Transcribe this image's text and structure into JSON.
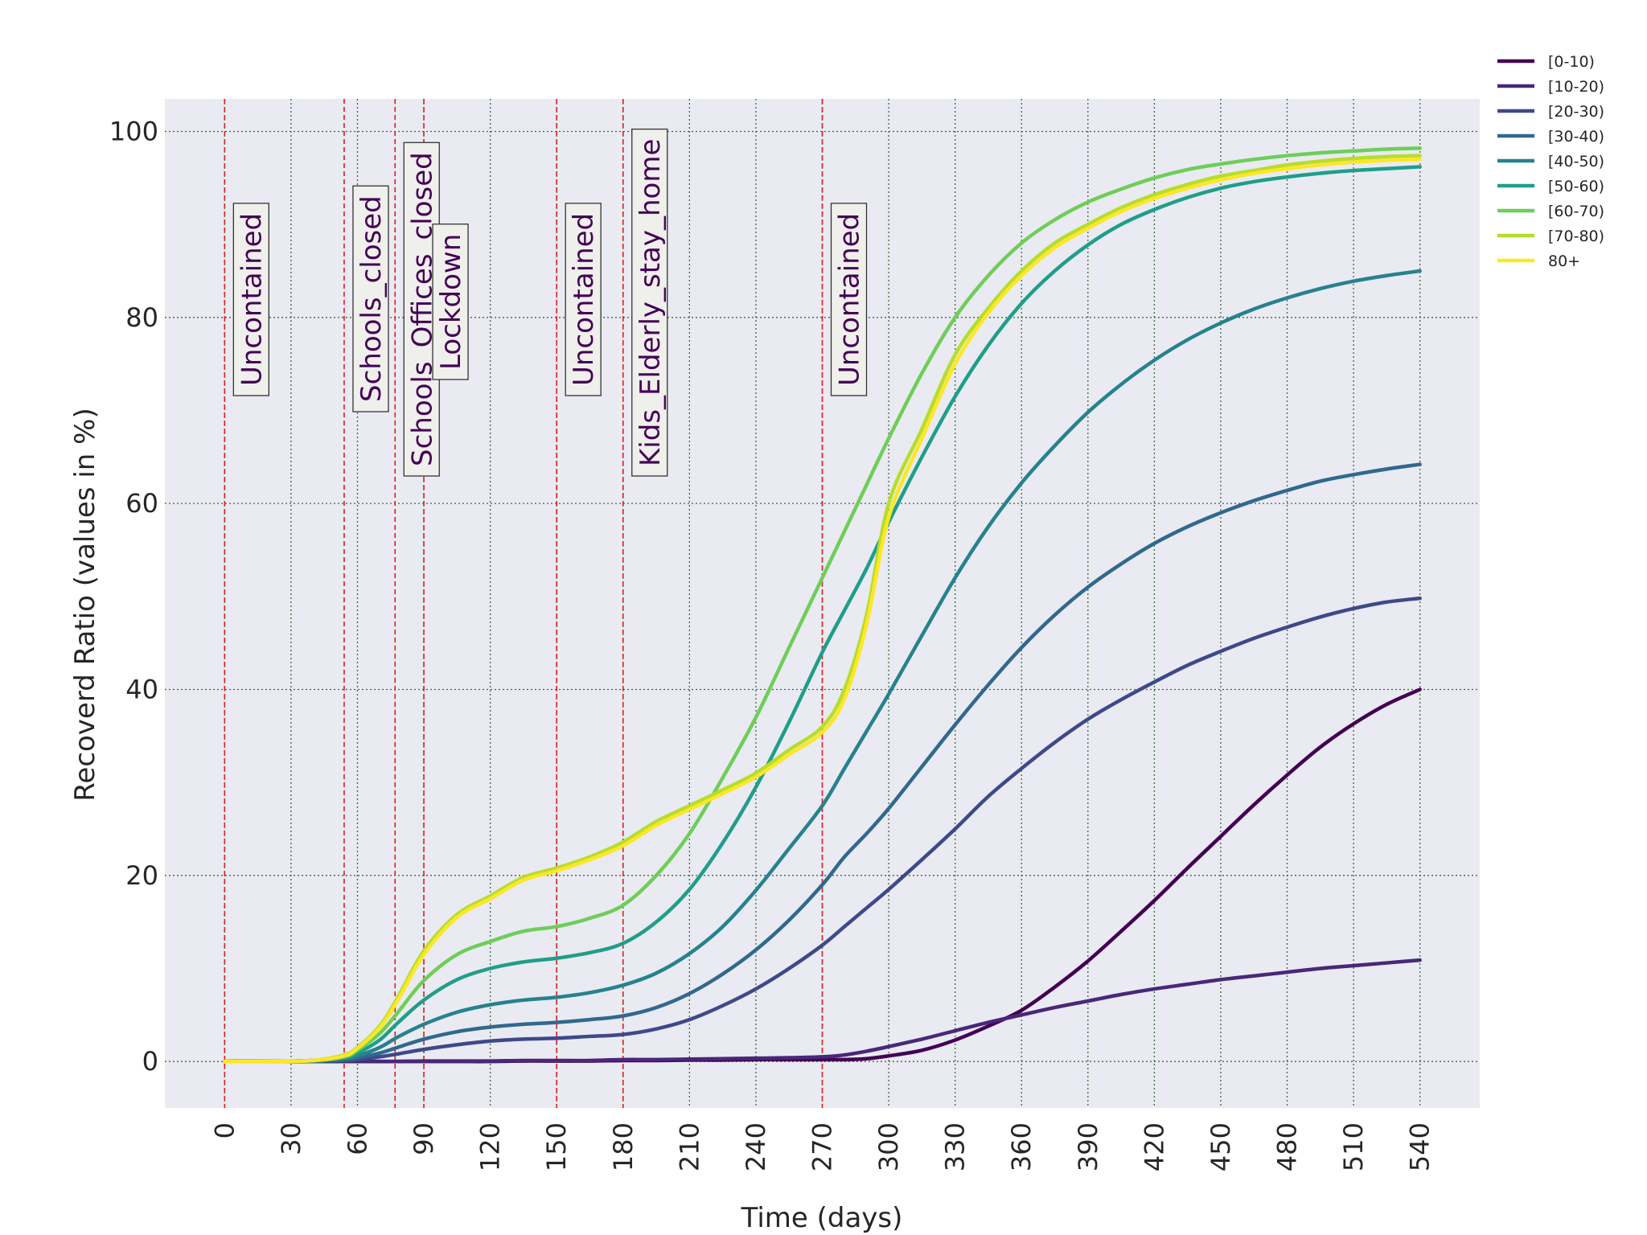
{
  "chart_data": {
    "type": "line",
    "title": "",
    "xlabel": "Time (days)",
    "ylabel": "Recoverd Ratio (values in %)",
    "xlim": [
      -27,
      567
    ],
    "ylim": [
      -5,
      103.5
    ],
    "xticks": [
      0,
      30,
      60,
      90,
      120,
      150,
      180,
      210,
      240,
      270,
      300,
      330,
      360,
      390,
      420,
      450,
      480,
      510,
      540
    ],
    "yticks": [
      0,
      20,
      40,
      60,
      80,
      100
    ],
    "grid": true,
    "legend_position": "top-right (outside plot)",
    "x": [
      0,
      20,
      40,
      54,
      60,
      70,
      78,
      90,
      105,
      120,
      135,
      150,
      165,
      180,
      195,
      210,
      225,
      240,
      255,
      270,
      280,
      290,
      300,
      315,
      330,
      345,
      360,
      375,
      390,
      405,
      420,
      435,
      450,
      465,
      480,
      495,
      510,
      525,
      540
    ],
    "series": [
      {
        "name": "[0-10)",
        "color": "#440154",
        "values": [
          0,
          0,
          0,
          0,
          0,
          0,
          0,
          0,
          0,
          0,
          0.05,
          0.05,
          0.05,
          0.1,
          0.1,
          0.15,
          0.15,
          0.2,
          0.2,
          0.2,
          0.2,
          0.3,
          0.6,
          1.2,
          2.3,
          3.8,
          5.5,
          8.0,
          10.8,
          14.0,
          17.3,
          20.8,
          24.2,
          27.6,
          30.8,
          33.8,
          36.3,
          38.4,
          40.0
        ]
      },
      {
        "name": "[10-20)",
        "color": "#482878",
        "values": [
          0,
          0,
          0,
          0,
          0,
          0,
          0,
          0.05,
          0.05,
          0.05,
          0.1,
          0.1,
          0.1,
          0.2,
          0.2,
          0.25,
          0.3,
          0.35,
          0.4,
          0.5,
          0.7,
          1.1,
          1.6,
          2.4,
          3.3,
          4.2,
          5.0,
          5.8,
          6.5,
          7.2,
          7.8,
          8.3,
          8.8,
          9.2,
          9.6,
          10.0,
          10.3,
          10.6,
          10.9
        ]
      },
      {
        "name": "[20-30)",
        "color": "#3e4989",
        "values": [
          0,
          0,
          0,
          0.1,
          0.2,
          0.5,
          0.8,
          1.3,
          1.8,
          2.2,
          2.4,
          2.5,
          2.7,
          2.9,
          3.5,
          4.5,
          6.0,
          7.8,
          10.0,
          12.5,
          14.5,
          16.5,
          18.5,
          21.7,
          25.0,
          28.5,
          31.5,
          34.3,
          36.8,
          38.9,
          40.8,
          42.6,
          44.1,
          45.5,
          46.7,
          47.8,
          48.7,
          49.4,
          49.8
        ]
      },
      {
        "name": "[30-40)",
        "color": "#31688e",
        "values": [
          0,
          0,
          0,
          0.2,
          0.4,
          0.9,
          1.5,
          2.4,
          3.2,
          3.7,
          4.0,
          4.2,
          4.5,
          4.9,
          5.8,
          7.3,
          9.4,
          12.0,
          15.2,
          19.0,
          22.0,
          24.5,
          27.2,
          31.7,
          36.2,
          40.5,
          44.5,
          48.0,
          51.0,
          53.5,
          55.7,
          57.5,
          59.0,
          60.3,
          61.4,
          62.4,
          63.1,
          63.7,
          64.2
        ]
      },
      {
        "name": "[40-50)",
        "color": "#26828e",
        "values": [
          0,
          0,
          0.1,
          0.3,
          0.6,
          1.5,
          2.6,
          4.0,
          5.3,
          6.1,
          6.6,
          6.9,
          7.4,
          8.2,
          9.5,
          11.6,
          14.5,
          18.4,
          22.9,
          27.5,
          31.5,
          35.5,
          39.5,
          45.8,
          52.0,
          57.5,
          62.2,
          66.2,
          69.8,
          72.8,
          75.4,
          77.6,
          79.4,
          80.9,
          82.1,
          83.1,
          83.9,
          84.5,
          85.0
        ]
      },
      {
        "name": "[50-60)",
        "color": "#1f9e89",
        "values": [
          0,
          0,
          0.1,
          0.4,
          0.9,
          2.3,
          4.1,
          6.6,
          8.8,
          10.0,
          10.7,
          11.1,
          11.7,
          12.7,
          15.0,
          18.5,
          23.5,
          29.5,
          36.5,
          44.0,
          48.5,
          53.0,
          58.0,
          65.0,
          71.5,
          77.0,
          81.5,
          85.0,
          87.8,
          90.0,
          91.6,
          92.9,
          93.9,
          94.6,
          95.1,
          95.5,
          95.8,
          96.0,
          96.2
        ]
      },
      {
        "name": "[60-70)",
        "color": "#6ece58",
        "values": [
          0,
          0,
          0.1,
          0.5,
          1.2,
          3.0,
          5.2,
          8.7,
          11.5,
          12.9,
          14.0,
          14.5,
          15.4,
          16.8,
          20.0,
          24.5,
          30.5,
          37.0,
          44.5,
          52.0,
          57.0,
          62.0,
          67.0,
          74.0,
          80.0,
          84.5,
          88.0,
          90.5,
          92.4,
          93.8,
          95.0,
          95.9,
          96.5,
          97.0,
          97.4,
          97.7,
          97.9,
          98.1,
          98.2
        ]
      },
      {
        "name": "[70-80)",
        "color": "#b5de2b",
        "values": [
          0,
          0,
          0.1,
          0.7,
          1.5,
          3.8,
          6.8,
          11.9,
          15.8,
          17.8,
          19.8,
          20.8,
          22.0,
          23.6,
          25.8,
          27.5,
          29.2,
          31.0,
          33.5,
          36.0,
          40.0,
          48.0,
          60.0,
          68.0,
          76.0,
          81.0,
          85.0,
          88.0,
          90.0,
          91.8,
          93.2,
          94.3,
          95.2,
          95.8,
          96.4,
          96.8,
          97.1,
          97.3,
          97.4
        ]
      },
      {
        "name": "80+",
        "color": "#fde725",
        "values": [
          0,
          0,
          0.1,
          0.6,
          1.4,
          3.6,
          6.5,
          11.5,
          15.5,
          17.5,
          19.5,
          20.5,
          21.7,
          23.2,
          25.4,
          27.1,
          28.8,
          30.6,
          33.0,
          35.4,
          39.0,
          47.0,
          58.5,
          67.0,
          75.0,
          80.5,
          84.5,
          87.5,
          89.6,
          91.4,
          92.8,
          93.9,
          94.8,
          95.5,
          96.0,
          96.4,
          96.7,
          96.9,
          97.0
        ]
      }
    ],
    "annotations": [
      {
        "text": "Uncontained",
        "x": 0
      },
      {
        "text": "Schools_closed",
        "x": 54
      },
      {
        "text": "Schools_Offices_closed",
        "x": 77
      },
      {
        "text": "Lockdown",
        "x": 90
      },
      {
        "text": "Uncontained",
        "x": 150
      },
      {
        "text": "Kids_Elderly_stay_home",
        "x": 180
      },
      {
        "text": "Uncontained",
        "x": 270
      }
    ]
  },
  "colors": {
    "plot_background": "#eaeaf2",
    "grid": "#3a6b3a",
    "event_line": "#e41a1c",
    "annotation_text": "#440154",
    "annotation_box": "#efefec"
  }
}
